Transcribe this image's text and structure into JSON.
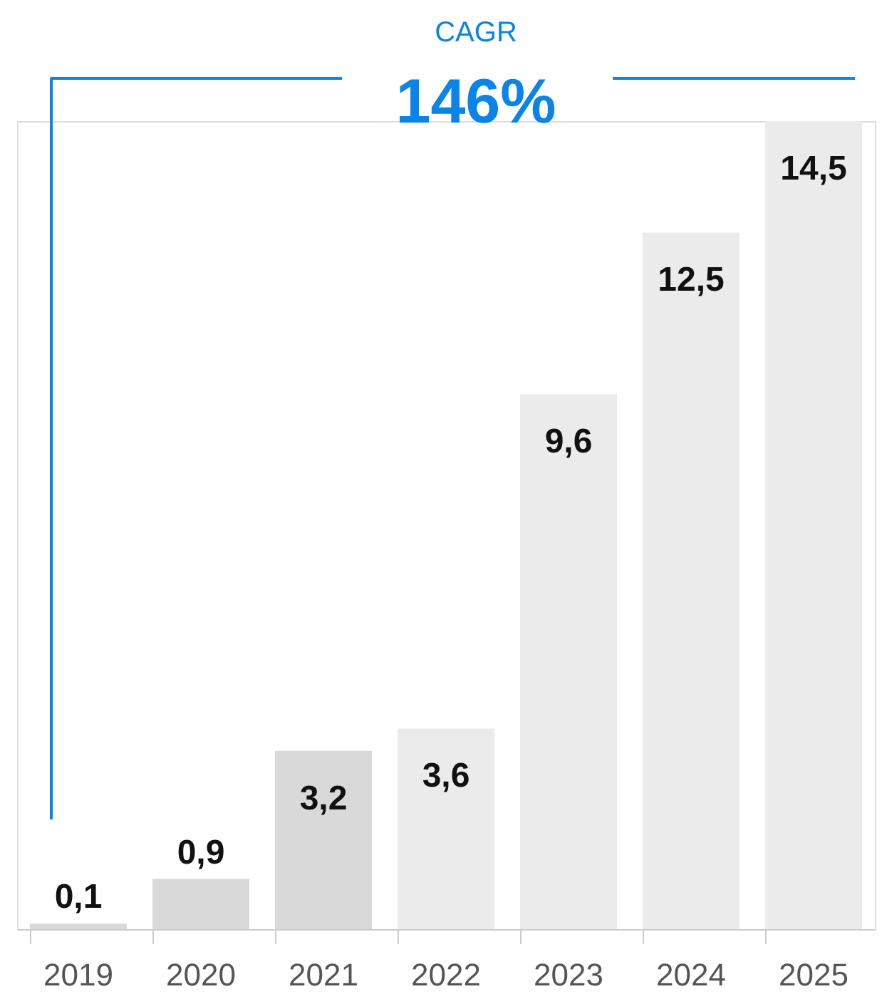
{
  "chart_data": {
    "type": "bar",
    "categories": [
      "2019",
      "2020",
      "2021",
      "2022",
      "2023",
      "2024",
      "2025"
    ],
    "values": [
      0.1,
      0.9,
      3.2,
      3.6,
      9.6,
      12.5,
      14.5
    ],
    "colors": [
      "#d9d9d9",
      "#d9d9d9",
      "#d9d9d9",
      "#ebebeb",
      "#ebebeb",
      "#ebebeb",
      "#ebebeb"
    ],
    "value_labels": [
      "0,1",
      "0,9",
      "3,2",
      "3,6",
      "9,6",
      "12,5",
      "14,5"
    ],
    "annotations": [
      "CAGR",
      "146%"
    ],
    "grid": false,
    "tick_labels": "x"
  }
}
